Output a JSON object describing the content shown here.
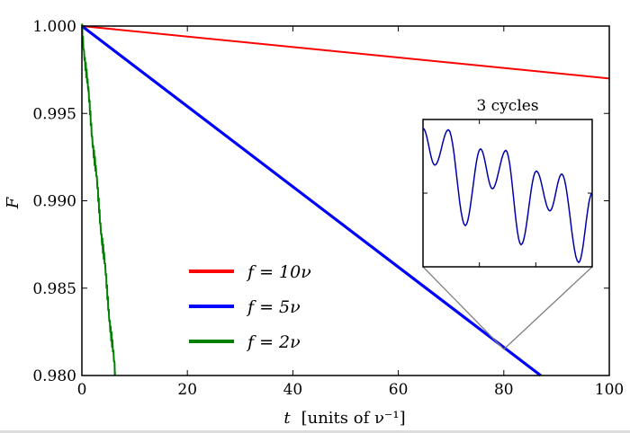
{
  "chart_data": {
    "type": "line",
    "xlabel_var": "t",
    "xlabel_units": "[units of ν⁻¹]",
    "ylabel": "F",
    "xlim": [
      0,
      100
    ],
    "ylim": [
      0.98,
      1.0
    ],
    "xticks": [
      "0",
      "20",
      "40",
      "60",
      "80",
      "100"
    ],
    "yticks": [
      "0.980",
      "0.985",
      "0.990",
      "0.995",
      "1.000"
    ],
    "grid": false,
    "legend_position": "lower-left",
    "series": [
      {
        "name": "f = 10ν",
        "color": "#ff0000",
        "x": [
          0,
          100
        ],
        "y": [
          1.0,
          0.997
        ]
      },
      {
        "name": "f = 5ν",
        "color": "#0000ff",
        "x": [
          0,
          87
        ],
        "y": [
          1.0,
          0.98
        ]
      },
      {
        "name": "f = 2ν",
        "color": "#007f00",
        "x": [
          0,
          6.3
        ],
        "y": [
          1.0,
          0.98
        ],
        "oscillating": true
      }
    ],
    "inset": {
      "title": "3 cycles",
      "zoom_center": {
        "x": 80,
        "y": 0.9815
      },
      "series_color": "#0000aa",
      "connector_color": "#808080"
    }
  }
}
